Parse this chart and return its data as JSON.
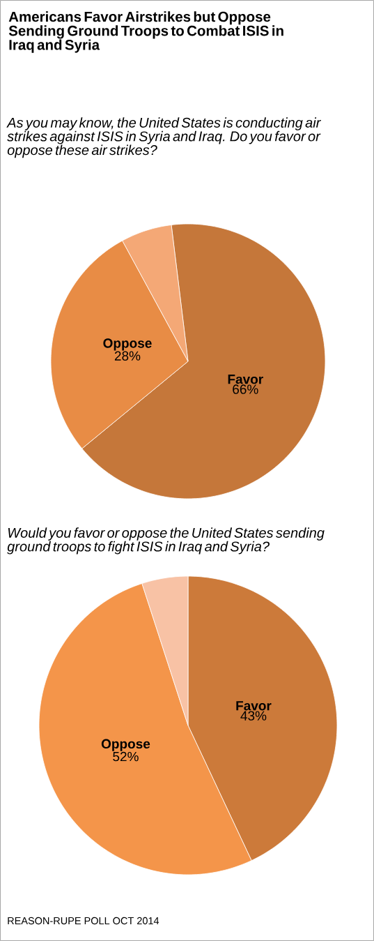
{
  "chart_data": [
    {
      "type": "pie",
      "title": "Americans Favor Airstrikes but Oppose Sending Ground Troops to Combat ISIS in Iraq and Syria",
      "subtitle": "As you may know, the United States is conducting air strikes against ISIS  in Syria and Iraq. Do you favor or oppose these air strikes?",
      "categories": [
        "Favor",
        "Oppose",
        null
      ],
      "values": [
        66,
        28,
        6
      ],
      "colors": [
        "#c5773a",
        "#e88c45",
        "#f4a876"
      ],
      "value_labels": [
        "66%",
        "28%",
        null
      ]
    },
    {
      "type": "pie",
      "subtitle": "Would you favor or oppose the United States sending ground troops to fight ISIS in Iraq and Syria?",
      "categories": [
        "Favor",
        "Oppose",
        null
      ],
      "values": [
        43,
        52,
        5
      ],
      "colors": [
        "#cc7a3a",
        "#f4954a",
        "#f8c2a5"
      ],
      "value_labels": [
        "43%",
        "52%",
        null
      ],
      "annotations": [
        "REASON-RUPE POLL OCT 2014"
      ]
    }
  ]
}
